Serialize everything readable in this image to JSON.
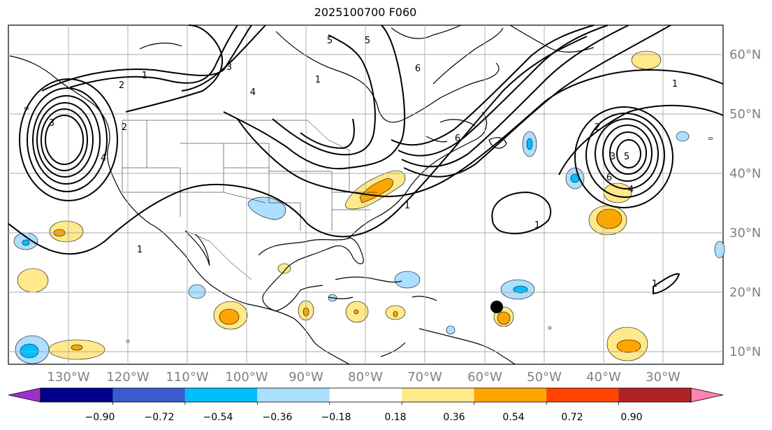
{
  "title": "2025100700 F060",
  "lon_labels": [
    "130°W",
    "120°W",
    "110°W",
    "100°W",
    "90°W",
    "80°W",
    "70°W",
    "60°W",
    "50°W",
    "40°W",
    "30°W"
  ],
  "lat_labels": [
    "60°N",
    "50°N",
    "40°N",
    "30°N",
    "20°N",
    "10°N"
  ],
  "colorbar": {
    "tick_labels": [
      "−0.90",
      "−0.72",
      "−0.54",
      "−0.36",
      "−0.18",
      "0.18",
      "0.36",
      "0.54",
      "0.72",
      "0.90"
    ],
    "colors": [
      "#9932CC",
      "#00008B",
      "#3A5BCC",
      "#00BFFF",
      "#ADDFFF",
      "#FFFFFF",
      "#FFE98A",
      "#FFA500",
      "#FF4500",
      "#B22222",
      "#FF85B0"
    ]
  },
  "contour_labels": [
    "1",
    "2",
    "3",
    "4",
    "5",
    "6",
    "1",
    "2",
    "3",
    "4",
    "5",
    "6",
    "1",
    "1",
    "1",
    "2",
    "3",
    "4",
    "5",
    "6",
    "1",
    "1",
    "2",
    "3",
    "4",
    "5",
    "1"
  ],
  "axis_colors": {
    "lon": "#808080",
    "lat": "#808080",
    "grid": "#a9a9a9"
  }
}
